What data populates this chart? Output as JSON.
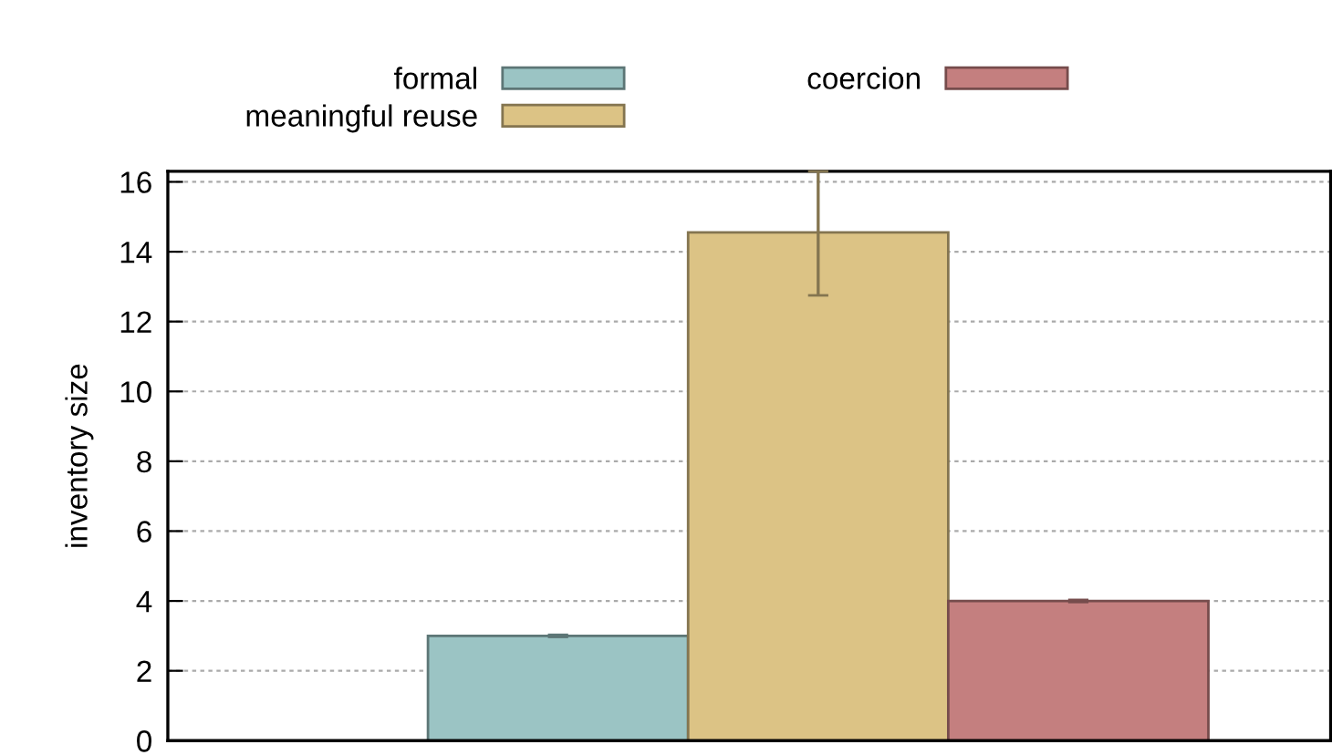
{
  "chart_data": {
    "type": "bar",
    "ylabel": "inventory size",
    "categories": [
      null
    ],
    "series": [
      {
        "name": "formal",
        "color": "#9bc4c4",
        "values": [
          3.0
        ],
        "errors": [
          0.03
        ]
      },
      {
        "name": "meaningful reuse",
        "color": "#dcc385",
        "values": [
          14.55
        ],
        "errors": [
          [
            12.75,
            16.3
          ]
        ]
      },
      {
        "name": "coercion",
        "color": "#c47f7f",
        "values": [
          4.0
        ],
        "errors": [
          0.03
        ]
      }
    ],
    "ylim": [
      0,
      16.3
    ],
    "yticks": [
      0,
      2,
      4,
      6,
      8,
      10,
      12,
      14,
      16
    ],
    "grid": "y",
    "legend": "top",
    "tick_labels": "y"
  }
}
